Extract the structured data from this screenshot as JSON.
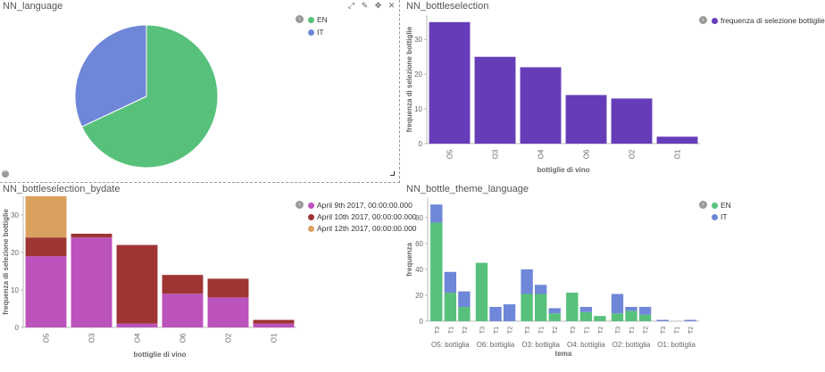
{
  "panels": {
    "language": {
      "title": "NN_language",
      "legend": [
        {
          "label": "EN",
          "color": "#57c17b"
        },
        {
          "label": "IT",
          "color": "#6f87d8"
        }
      ],
      "toolbar": {
        "expand": "⤢",
        "edit": "✎",
        "move": "✥",
        "close": "✕"
      }
    },
    "bottleselection": {
      "title": "NN_bottleselection",
      "legend": [
        {
          "label": "frequenza di selezione bottiglie",
          "color": "#663db8"
        }
      ]
    },
    "bydate": {
      "title": "NN_bottleselection_bydate",
      "legend": [
        {
          "label": "April 9th 2017, 00:00:00.000",
          "color": "#bc52bc"
        },
        {
          "label": "April 10th 2017, 00:00:00.000",
          "color": "#9e3533"
        },
        {
          "label": "April 12th 2017, 00:00:00.000",
          "color": "#daa05d"
        }
      ]
    },
    "theme": {
      "title": "NN_bottle_theme_language",
      "legend": [
        {
          "label": "EN",
          "color": "#57c17b"
        },
        {
          "label": "IT",
          "color": "#6f87d8"
        }
      ]
    }
  },
  "chart_data": [
    {
      "type": "pie",
      "title": "NN_language",
      "labels": [
        "EN",
        "IT"
      ],
      "values": [
        68,
        32
      ],
      "colors": [
        "#57c17b",
        "#6f87d8"
      ]
    },
    {
      "type": "bar",
      "title": "NN_bottleselection",
      "categories": [
        "O5",
        "O3",
        "O4",
        "O6",
        "O2",
        "O1"
      ],
      "values": [
        35,
        25,
        22,
        14,
        13,
        2
      ],
      "color": "#663db8",
      "xlabel": "bottiglie di vino",
      "ylabel": "frequenza di selezione bottiglie",
      "ylim": [
        0,
        37
      ],
      "yticks": [
        0,
        10,
        20,
        30
      ]
    },
    {
      "type": "bar",
      "stacked": true,
      "title": "NN_bottleselection_bydate",
      "categories": [
        "O5",
        "O3",
        "O4",
        "O6",
        "O2",
        "O1"
      ],
      "series": [
        {
          "name": "April 9th 2017, 00:00:00.000",
          "color": "#bc52bc",
          "values": [
            19,
            24,
            1,
            9,
            8,
            1
          ]
        },
        {
          "name": "April 10th 2017, 00:00:00.000",
          "color": "#9e3533",
          "values": [
            5,
            1,
            21,
            5,
            5,
            1
          ]
        },
        {
          "name": "April 12th 2017, 00:00:00.000",
          "color": "#daa05d",
          "values": [
            11,
            0,
            0,
            0,
            0,
            0
          ]
        }
      ],
      "xlabel": "bottiglie di vino",
      "ylabel": "frequenza di selezione bottiglie",
      "ylim": [
        0,
        35
      ],
      "yticks": [
        0,
        10,
        20,
        30
      ]
    },
    {
      "type": "bar",
      "stacked": true,
      "title": "NN_bottle_theme_language",
      "groups": [
        {
          "label": "O5: bottiglia",
          "categories": [
            "T3",
            "T1",
            "T2"
          ],
          "EN": [
            76,
            22,
            11
          ],
          "IT": [
            14,
            16,
            12
          ]
        },
        {
          "label": "O6: bottiglia",
          "categories": [
            "T3",
            "T1",
            "T2"
          ],
          "EN": [
            45,
            0,
            0
          ],
          "IT": [
            0,
            11,
            13
          ]
        },
        {
          "label": "O3: bottiglia",
          "categories": [
            "T3",
            "T1",
            "T2"
          ],
          "EN": [
            21,
            21,
            6
          ],
          "IT": [
            19,
            7,
            4
          ]
        },
        {
          "label": "O4: bottiglia",
          "categories": [
            "T3",
            "T1",
            "T2"
          ],
          "EN": [
            22,
            7,
            4
          ],
          "IT": [
            0,
            4,
            0
          ]
        },
        {
          "label": "O2: bottiglia",
          "categories": [
            "T3",
            "T1",
            "T2"
          ],
          "EN": [
            6,
            8,
            5
          ],
          "IT": [
            15,
            3,
            6
          ]
        },
        {
          "label": "O1: bottiglia",
          "categories": [
            "T3",
            "T1",
            "T2"
          ],
          "EN": [
            0,
            0,
            0
          ],
          "IT": [
            1,
            0,
            1
          ]
        }
      ],
      "series": [
        {
          "name": "EN",
          "color": "#57c17b"
        },
        {
          "name": "IT",
          "color": "#6f87d8"
        }
      ],
      "xlabel": "tema",
      "ylabel": "frequenza",
      "ylim": [
        0,
        95
      ],
      "yticks": [
        0,
        20,
        40,
        60,
        80
      ]
    }
  ]
}
